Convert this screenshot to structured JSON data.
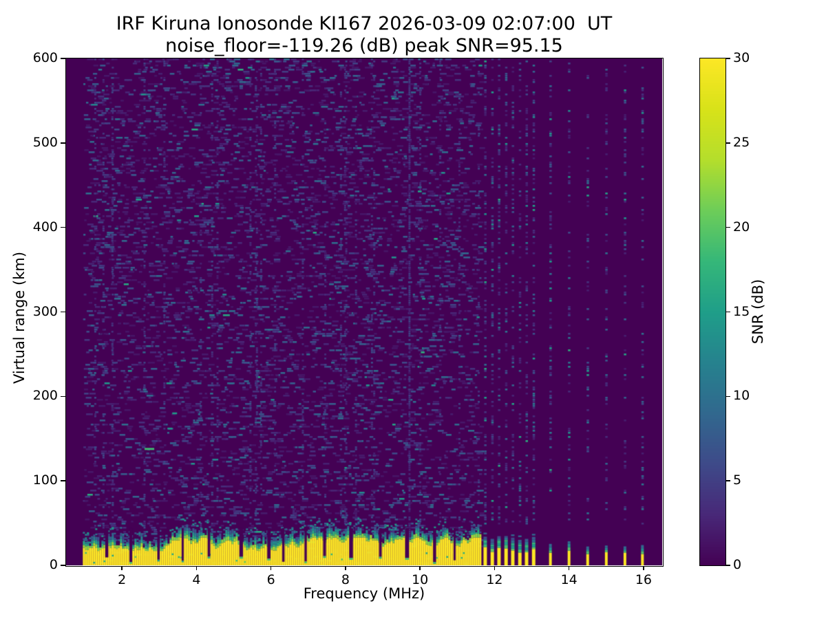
{
  "chart_data": {
    "type": "heatmap",
    "title_line1": "IRF Kiruna Ionosonde KI167 2026-03-09 02:07:00  UT",
    "title_line2": "noise_floor=-119.26 (dB) peak SNR=95.15",
    "station": "IRF Kiruna Ionosonde KI167",
    "timestamp_ut": "2026-03-09 02:07:00",
    "noise_floor_db": -119.26,
    "peak_snr_db": 95.15,
    "xlabel": "Frequency (MHz)",
    "ylabel": "Virtual range (km)",
    "xlim": [
      0.5,
      16.5
    ],
    "ylim": [
      0,
      600
    ],
    "xticks": [
      2,
      4,
      6,
      8,
      10,
      12,
      14,
      16
    ],
    "yticks": [
      0,
      100,
      200,
      300,
      400,
      500,
      600
    ],
    "colormap": "viridis",
    "colors": {
      "background_low": "#440154",
      "peak_high": "#fde725"
    },
    "colorbar": {
      "label": "SNR (dB)",
      "min": 0,
      "max": 30,
      "ticks": [
        0,
        5,
        10,
        15,
        20,
        25,
        30
      ]
    },
    "features": {
      "sweep_start_mhz": 0.95,
      "band_end_mhz": 11.6,
      "band_top_km_typical": 28,
      "band_description": "saturated near-range echo band (SNR >= 30 dB) from 0.95 to 11.6 MHz below ~30 km with jagged green/teal upper fringe",
      "band_notches_mhz": [
        1.55,
        2.2,
        2.95,
        3.6,
        4.3,
        5.15,
        5.9,
        6.3,
        6.9,
        7.4,
        8.1,
        8.9,
        9.6,
        10.35,
        10.9
      ],
      "dense_stripes_mhz": [
        11.75,
        11.94,
        12.12,
        12.31,
        12.49,
        12.68,
        12.86,
        13.05
      ],
      "sparse_stripes_mhz": [
        13.5,
        14.0,
        14.5,
        15.0,
        15.5,
        15.97
      ],
      "rfi_line_mhz": 9.69,
      "echo": {
        "freq_mhz": 2.7,
        "range_km": 139
      },
      "echo_specks": [
        {
          "freq_mhz": 3.22,
          "range_km": 163
        },
        {
          "freq_mhz": 3.35,
          "range_km": 181
        }
      ],
      "background": "random receiver-noise speckle across 0.95-11.6 MHz at all ranges; columnar noise speckle above each stripe frequency beyond 11.6 MHz"
    }
  }
}
